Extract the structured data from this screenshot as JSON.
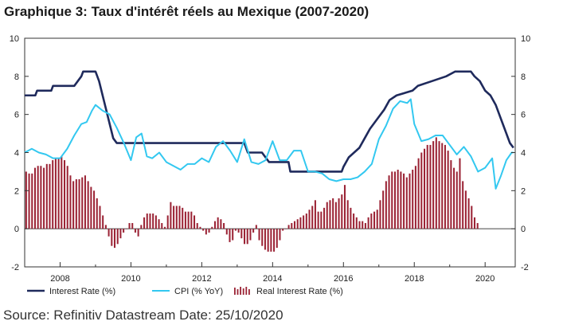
{
  "title": "Graphique 3: Taux d'intérêt réels au Mexique (2007-2020)",
  "source": "Source: Refinitiv Datastream Date: 25/10/2020",
  "chart_data": {
    "type": "line",
    "title": "Graphique 3: Taux d'intérêt réels au Mexique (2007-2020)",
    "xlim": [
      2007.0,
      2020.85
    ],
    "ylim": [
      -2,
      10
    ],
    "y_ticks": [
      -2,
      0,
      2,
      4,
      6,
      8,
      10
    ],
    "x_ticks": [
      2008,
      2010,
      2012,
      2014,
      2016,
      2018,
      2020
    ],
    "grid": false,
    "legend_position": "bottom",
    "colors": {
      "interest": "#1f2a5c",
      "cpi": "#33c8f0",
      "real": "#9b2335"
    },
    "series": [
      {
        "name": "Interest Rate (%)",
        "kind": "line",
        "color": "#1f2a5c",
        "points": [
          [
            2007.0,
            7.0
          ],
          [
            2007.3,
            7.0
          ],
          [
            2007.35,
            7.25
          ],
          [
            2007.75,
            7.25
          ],
          [
            2007.8,
            7.5
          ],
          [
            2008.4,
            7.5
          ],
          [
            2008.5,
            7.75
          ],
          [
            2008.6,
            8.0
          ],
          [
            2008.65,
            8.25
          ],
          [
            2009.0,
            8.25
          ],
          [
            2009.1,
            7.75
          ],
          [
            2009.2,
            7.0
          ],
          [
            2009.3,
            6.25
          ],
          [
            2009.4,
            5.5
          ],
          [
            2009.5,
            4.75
          ],
          [
            2009.6,
            4.5
          ],
          [
            2013.2,
            4.5
          ],
          [
            2013.3,
            4.0
          ],
          [
            2013.7,
            4.0
          ],
          [
            2013.8,
            3.75
          ],
          [
            2013.9,
            3.5
          ],
          [
            2014.45,
            3.5
          ],
          [
            2014.5,
            3.0
          ],
          [
            2015.95,
            3.0
          ],
          [
            2016.0,
            3.25
          ],
          [
            2016.15,
            3.75
          ],
          [
            2016.45,
            4.25
          ],
          [
            2016.6,
            4.75
          ],
          [
            2016.75,
            5.25
          ],
          [
            2016.95,
            5.75
          ],
          [
            2017.15,
            6.25
          ],
          [
            2017.3,
            6.75
          ],
          [
            2017.5,
            7.0
          ],
          [
            2017.95,
            7.25
          ],
          [
            2018.1,
            7.5
          ],
          [
            2018.5,
            7.75
          ],
          [
            2018.9,
            8.0
          ],
          [
            2019.15,
            8.25
          ],
          [
            2019.6,
            8.25
          ],
          [
            2019.7,
            8.0
          ],
          [
            2019.85,
            7.75
          ],
          [
            2020.0,
            7.25
          ],
          [
            2020.15,
            7.0
          ],
          [
            2020.3,
            6.5
          ],
          [
            2020.4,
            6.0
          ],
          [
            2020.5,
            5.5
          ],
          [
            2020.6,
            5.0
          ],
          [
            2020.7,
            4.5
          ],
          [
            2020.8,
            4.25
          ]
        ]
      },
      {
        "name": "CPI (% YoY)",
        "kind": "line",
        "color": "#33c8f0",
        "points": [
          [
            2007.0,
            4.0
          ],
          [
            2007.2,
            4.2
          ],
          [
            2007.4,
            4.0
          ],
          [
            2007.6,
            3.9
          ],
          [
            2007.8,
            3.7
          ],
          [
            2008.0,
            3.7
          ],
          [
            2008.2,
            4.2
          ],
          [
            2008.4,
            4.9
          ],
          [
            2008.6,
            5.5
          ],
          [
            2008.75,
            5.6
          ],
          [
            2008.9,
            6.2
          ],
          [
            2009.0,
            6.5
          ],
          [
            2009.2,
            6.2
          ],
          [
            2009.4,
            6.0
          ],
          [
            2009.6,
            5.3
          ],
          [
            2009.8,
            4.5
          ],
          [
            2010.0,
            3.6
          ],
          [
            2010.15,
            4.8
          ],
          [
            2010.3,
            5.0
          ],
          [
            2010.45,
            3.8
          ],
          [
            2010.6,
            3.7
          ],
          [
            2010.8,
            4.0
          ],
          [
            2011.0,
            3.5
          ],
          [
            2011.2,
            3.3
          ],
          [
            2011.4,
            3.1
          ],
          [
            2011.6,
            3.4
          ],
          [
            2011.8,
            3.4
          ],
          [
            2012.0,
            3.7
          ],
          [
            2012.2,
            3.5
          ],
          [
            2012.4,
            4.3
          ],
          [
            2012.6,
            4.6
          ],
          [
            2012.8,
            4.1
          ],
          [
            2013.0,
            3.5
          ],
          [
            2013.2,
            4.7
          ],
          [
            2013.4,
            3.5
          ],
          [
            2013.6,
            3.4
          ],
          [
            2013.8,
            3.6
          ],
          [
            2014.0,
            4.6
          ],
          [
            2014.2,
            3.6
          ],
          [
            2014.4,
            3.6
          ],
          [
            2014.6,
            4.1
          ],
          [
            2014.8,
            4.1
          ],
          [
            2015.0,
            3.0
          ],
          [
            2015.2,
            3.0
          ],
          [
            2015.4,
            2.9
          ],
          [
            2015.6,
            2.6
          ],
          [
            2015.8,
            2.5
          ],
          [
            2016.0,
            2.6
          ],
          [
            2016.2,
            2.6
          ],
          [
            2016.4,
            2.7
          ],
          [
            2016.6,
            3.0
          ],
          [
            2016.8,
            3.4
          ],
          [
            2017.0,
            4.7
          ],
          [
            2017.2,
            5.4
          ],
          [
            2017.4,
            6.3
          ],
          [
            2017.6,
            6.7
          ],
          [
            2017.8,
            6.6
          ],
          [
            2017.9,
            6.8
          ],
          [
            2018.0,
            5.5
          ],
          [
            2018.2,
            4.6
          ],
          [
            2018.4,
            4.7
          ],
          [
            2018.6,
            4.9
          ],
          [
            2018.8,
            4.9
          ],
          [
            2019.0,
            4.4
          ],
          [
            2019.2,
            3.9
          ],
          [
            2019.4,
            4.3
          ],
          [
            2019.6,
            3.8
          ],
          [
            2019.8,
            3.0
          ],
          [
            2020.0,
            3.2
          ],
          [
            2020.2,
            3.7
          ],
          [
            2020.3,
            2.1
          ],
          [
            2020.45,
            2.8
          ],
          [
            2020.6,
            3.6
          ],
          [
            2020.75,
            4.0
          ],
          [
            2020.8,
            4.0
          ]
        ]
      },
      {
        "name": "Real Interest Rate (%)",
        "kind": "bar",
        "color": "#9b2335",
        "x_start": 2007.0,
        "x_step": 0.0833,
        "values": [
          3.0,
          2.9,
          2.9,
          3.2,
          3.3,
          3.3,
          3.2,
          3.4,
          3.4,
          3.6,
          3.7,
          3.7,
          3.8,
          3.6,
          3.3,
          2.8,
          2.5,
          2.6,
          2.6,
          2.7,
          2.8,
          2.5,
          2.2,
          2.0,
          1.6,
          1.2,
          0.7,
          0.2,
          -0.4,
          -0.9,
          -1.0,
          -0.8,
          -0.5,
          -0.2,
          0.0,
          0.3,
          0.3,
          -0.2,
          -0.4,
          0.2,
          0.6,
          0.8,
          0.8,
          0.8,
          0.7,
          0.5,
          0.3,
          0.1,
          0.7,
          1.4,
          1.2,
          1.2,
          1.2,
          1.1,
          0.9,
          0.9,
          0.9,
          0.7,
          0.3,
          0.1,
          -0.1,
          -0.3,
          -0.2,
          0.1,
          0.4,
          0.6,
          0.5,
          0.3,
          -0.3,
          -0.7,
          -0.6,
          -0.1,
          -0.2,
          -0.5,
          -0.8,
          -0.8,
          -0.6,
          -0.2,
          0.2,
          -0.6,
          -0.9,
          -1.1,
          -1.2,
          -1.2,
          -1.2,
          -1.0,
          -0.6,
          -0.1,
          0.0,
          0.2,
          0.3,
          0.4,
          0.5,
          0.6,
          0.7,
          0.8,
          1.0,
          1.2,
          1.5,
          0.9,
          0.9,
          1.1,
          1.4,
          1.5,
          1.6,
          1.4,
          1.6,
          1.8,
          2.3,
          1.5,
          1.1,
          0.8,
          0.6,
          0.4,
          0.4,
          0.3,
          0.6,
          0.8,
          0.9,
          1.0,
          1.5,
          2.0,
          2.5,
          2.8,
          3.0,
          3.0,
          3.1,
          3.0,
          2.9,
          2.7,
          2.9,
          3.1,
          3.3,
          3.7,
          4.0,
          4.2,
          4.4,
          4.4,
          4.6,
          4.8,
          4.6,
          4.5,
          4.4,
          4.1,
          3.6,
          3.2,
          3.0,
          3.7,
          2.5,
          2.0,
          1.6,
          1.2,
          0.6,
          0.3
        ]
      }
    ]
  }
}
